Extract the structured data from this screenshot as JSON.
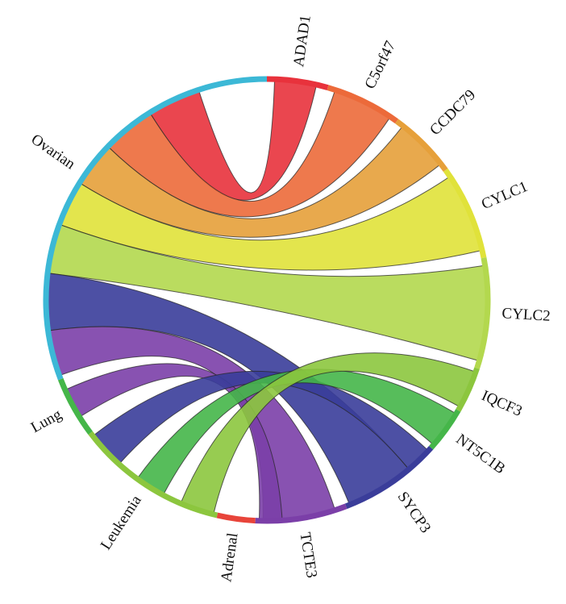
{
  "chart_data": {
    "type": "chord",
    "title": "",
    "nodes": [
      {
        "name": "ADAD1",
        "color": "#e8323c"
      },
      {
        "name": "C5orf47",
        "color": "#ec6a3a"
      },
      {
        "name": "CCDC79",
        "color": "#e6a03a"
      },
      {
        "name": "CYLC1",
        "color": "#e0e23a"
      },
      {
        "name": "CYLC2",
        "color": "#b3d84e"
      },
      {
        "name": "IQCF3",
        "color": "#8cc63e"
      },
      {
        "name": "NT5C1B",
        "color": "#45b649"
      },
      {
        "name": "SYCP3",
        "color": "#3a3d9a"
      },
      {
        "name": "TCTE3",
        "color": "#7b3fa8"
      },
      {
        "name": "Adrenal",
        "color": "#e8443a"
      },
      {
        "name": "Leukemia",
        "color": "#8cc63e"
      },
      {
        "name": "Lung",
        "color": "#45b649"
      },
      {
        "name": "Ovarian",
        "color": "#3cb8d6"
      }
    ],
    "links": [
      {
        "source": "ADAD1",
        "target": "Ovarian",
        "color": "#e8323c"
      },
      {
        "source": "C5orf47",
        "target": "Ovarian",
        "color": "#ec6a3a"
      },
      {
        "source": "CCDC79",
        "target": "Ovarian",
        "color": "#e6a03a"
      },
      {
        "source": "CYLC1",
        "target": "Ovarian",
        "color": "#e0e23a"
      },
      {
        "source": "CYLC2",
        "target": "Ovarian",
        "color": "#b3d84e"
      },
      {
        "source": "SYCP3",
        "target": "Ovarian",
        "color": "#3a3d9a"
      },
      {
        "source": "TCTE3",
        "target": "Ovarian",
        "color": "#7b3fa8"
      },
      {
        "source": "TCTE3",
        "target": "Lung",
        "color": "#7b3fa8"
      },
      {
        "source": "SYCP3",
        "target": "Leukemia",
        "color": "#3a3d9a"
      },
      {
        "source": "NT5C1B",
        "target": "Leukemia",
        "color": "#45b649"
      },
      {
        "source": "IQCF3",
        "target": "Adrenal",
        "color": "#8cc63e"
      }
    ]
  }
}
